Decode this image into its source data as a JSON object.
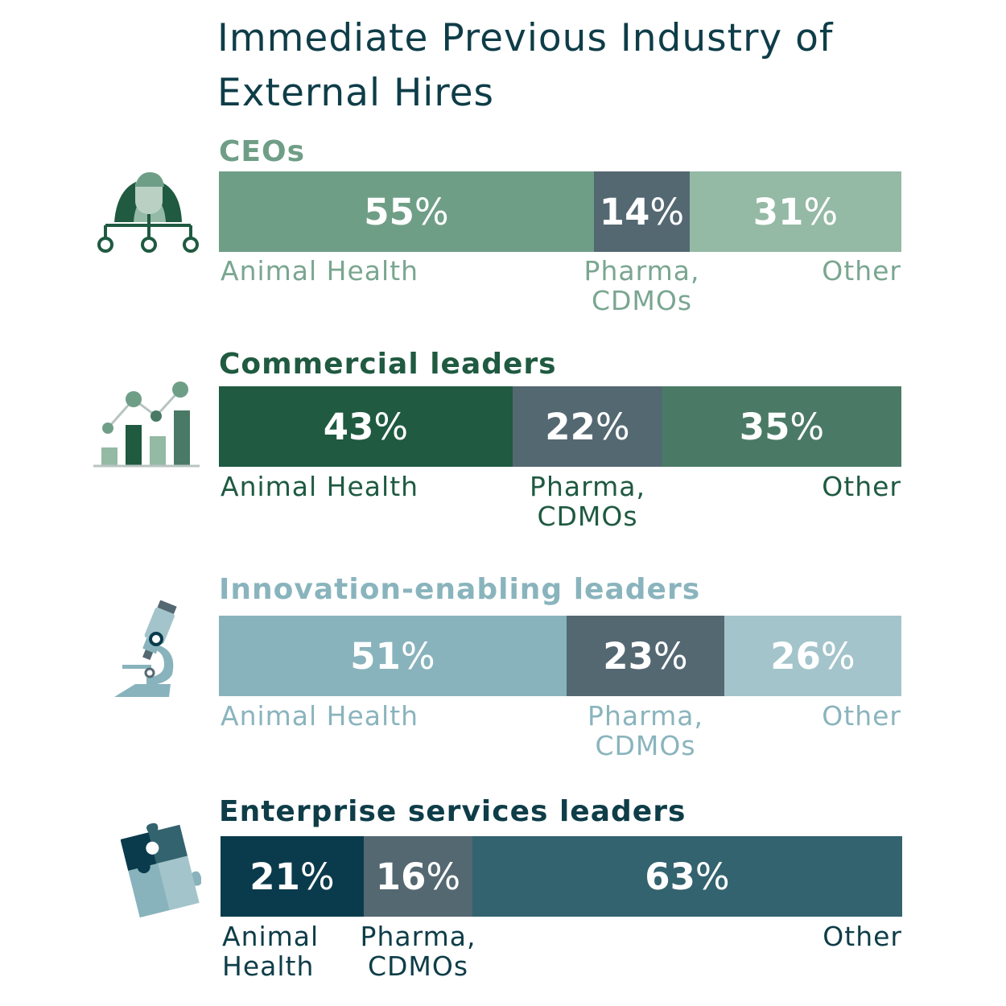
{
  "title": "Immediate Previous Industry of External Hires",
  "chart_data": {
    "type": "bar",
    "orientation": "horizontal",
    "stacked": true,
    "unit": "%",
    "title": "Immediate Previous Industry of External Hires",
    "categories": [
      "Animal Health",
      "Pharma, CDMOs",
      "Other"
    ],
    "groups": [
      {
        "name": "CEOs",
        "icon": "org-chart-person-icon",
        "colors": {
          "title": "#6f9e87",
          "label": "#7aa690",
          "segments": [
            "#6f9e87",
            "#546872",
            "#94b9a5"
          ]
        },
        "values": [
          55,
          14,
          31
        ],
        "labels": [
          "Animal Health",
          "Pharma,\nCDMOs",
          "Other"
        ]
      },
      {
        "name": "Commercial leaders",
        "icon": "bar-chart-growth-icon",
        "colors": {
          "title": "#1f5a41",
          "label": "#1f5a41",
          "segments": [
            "#1f5a41",
            "#546872",
            "#4a7a65"
          ]
        },
        "values": [
          43,
          22,
          35
        ],
        "labels": [
          "Animal Health",
          "Pharma,\nCDMOs",
          "Other"
        ]
      },
      {
        "name": "Innovation-enabling leaders",
        "icon": "microscope-icon",
        "colors": {
          "title": "#8ab4bd",
          "label": "#8ab4bd",
          "segments": [
            "#88b3bc",
            "#546872",
            "#a3c4ca"
          ]
        },
        "values": [
          51,
          23,
          26
        ],
        "labels": [
          "Animal Health",
          "Pharma,\nCDMOs",
          "Other"
        ]
      },
      {
        "name": "Enterprise services leaders",
        "icon": "puzzle-pieces-icon",
        "colors": {
          "title": "#0e3d48",
          "label": "#0e3d48",
          "segments": [
            "#0a3b4c",
            "#546872",
            "#33636f"
          ]
        },
        "values": [
          21,
          16,
          63
        ],
        "labels": [
          "Animal\nHealth",
          "Pharma,\nCDMOs",
          "Other"
        ]
      }
    ]
  }
}
